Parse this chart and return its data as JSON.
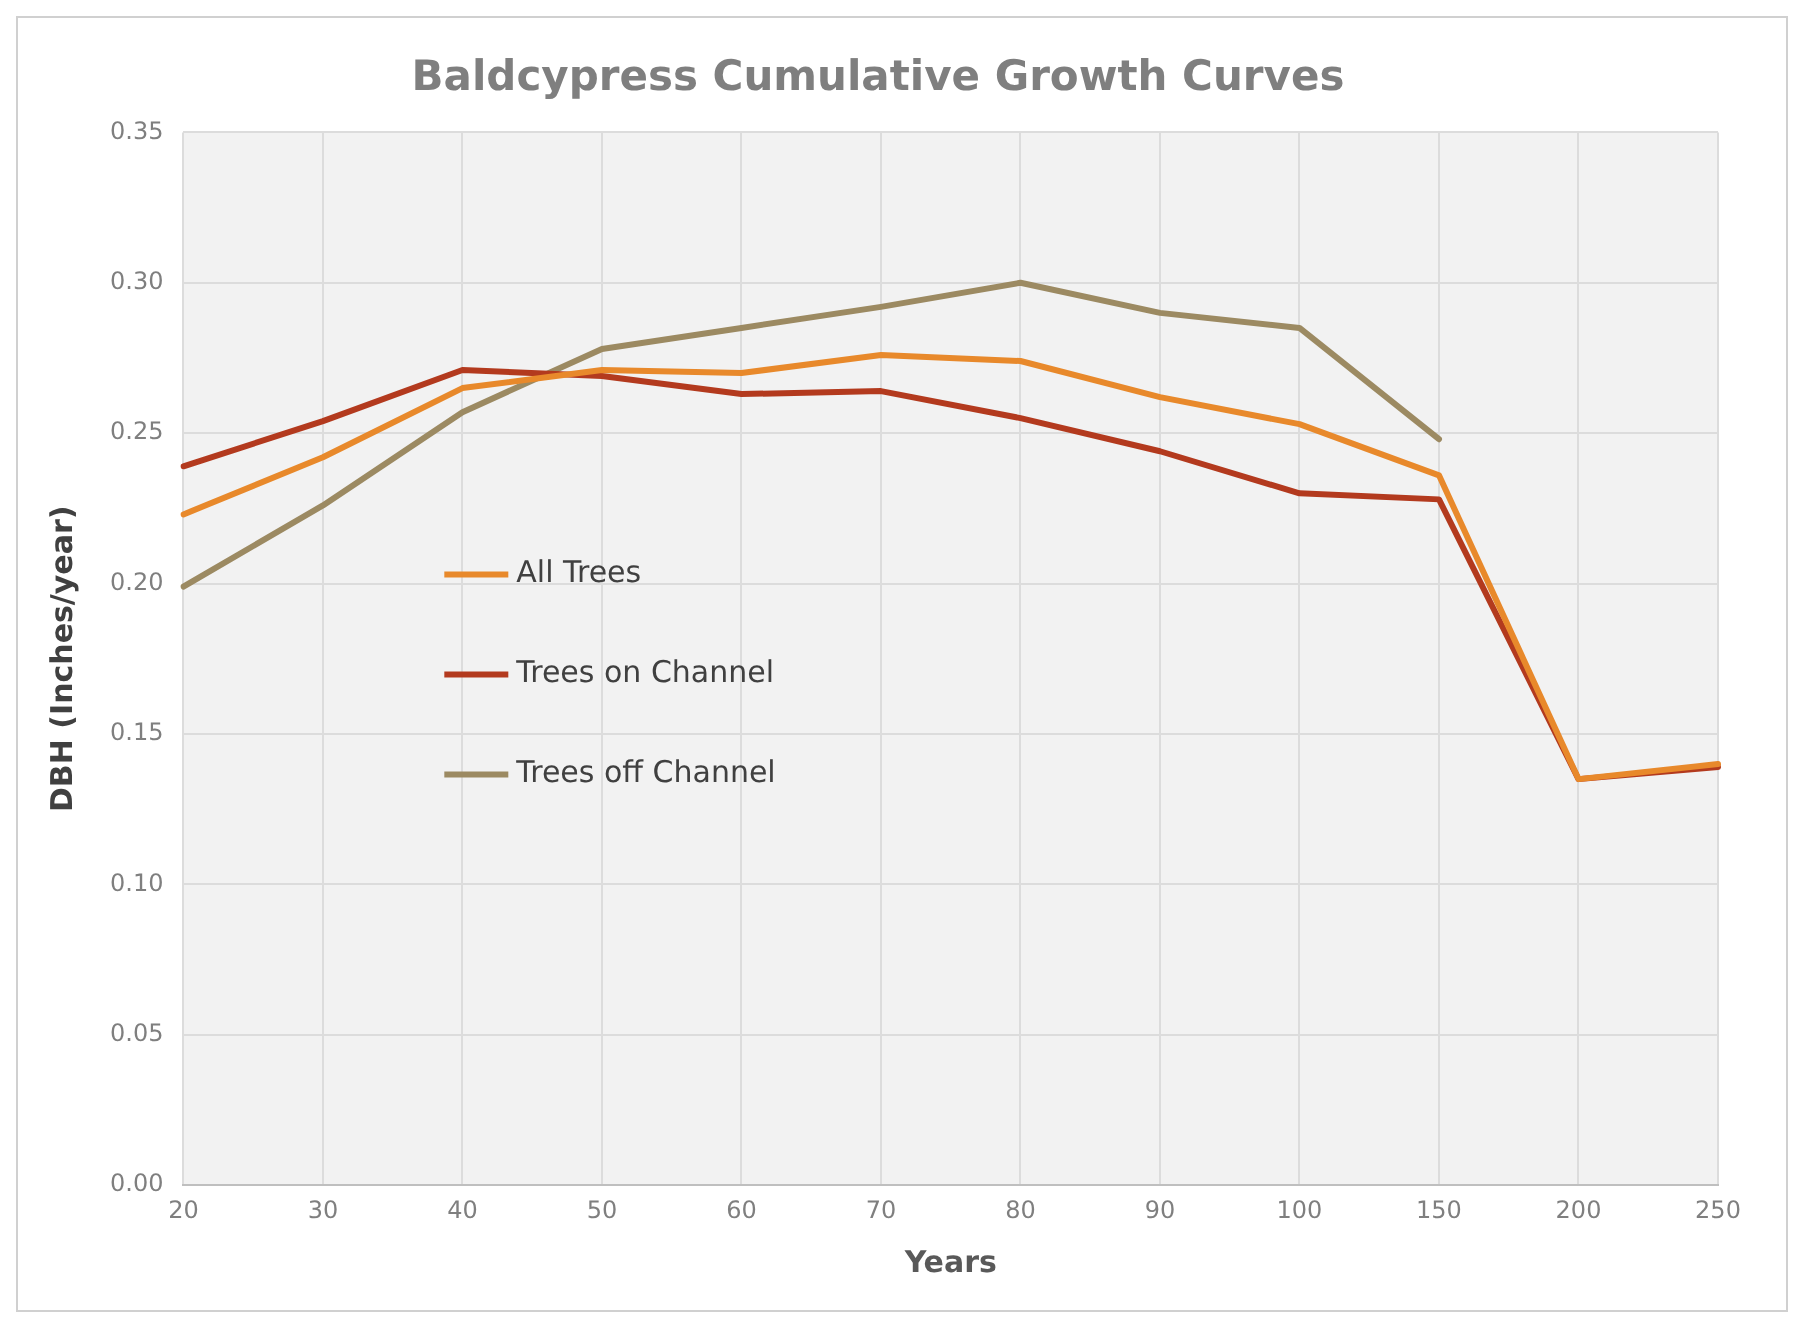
{
  "chart_data": {
    "type": "line",
    "title": "Baldcypress Cumulative Growth Curves",
    "xlabel": "Years",
    "ylabel": "DBH (Inches/year)",
    "categories": [
      "20",
      "30",
      "40",
      "50",
      "60",
      "70",
      "80",
      "90",
      "100",
      "150",
      "200",
      "250"
    ],
    "series": [
      {
        "name": "All Trees",
        "color": "#e8892b",
        "values": [
          0.223,
          0.242,
          0.265,
          0.271,
          0.27,
          0.276,
          0.274,
          0.262,
          0.253,
          0.236,
          0.135,
          0.14
        ]
      },
      {
        "name": "Trees on Channel",
        "color": "#b33a1e",
        "values": [
          0.239,
          0.254,
          0.271,
          0.269,
          0.263,
          0.264,
          0.255,
          0.244,
          0.23,
          0.228,
          0.135,
          0.139
        ]
      },
      {
        "name": "Trees off Channel",
        "color": "#9c8a62",
        "values": [
          0.199,
          0.226,
          0.257,
          0.278,
          0.285,
          0.292,
          0.3,
          0.29,
          0.285,
          0.248,
          null,
          null
        ]
      }
    ],
    "ylim": [
      0,
      0.35
    ],
    "yticks": [
      {
        "value": 0,
        "label": "0.00"
      },
      {
        "value": 0.05,
        "label": "0.05"
      },
      {
        "value": 0.1,
        "label": "0.10"
      },
      {
        "value": 0.15,
        "label": "0.15"
      },
      {
        "value": 0.2,
        "label": "0.20"
      },
      {
        "value": 0.25,
        "label": "0.25"
      },
      {
        "value": 0.3,
        "label": "0.30"
      },
      {
        "value": 0.35,
        "label": "0.35"
      }
    ],
    "grid": true,
    "legend": "left",
    "marker": "none",
    "line_style": "solid"
  }
}
